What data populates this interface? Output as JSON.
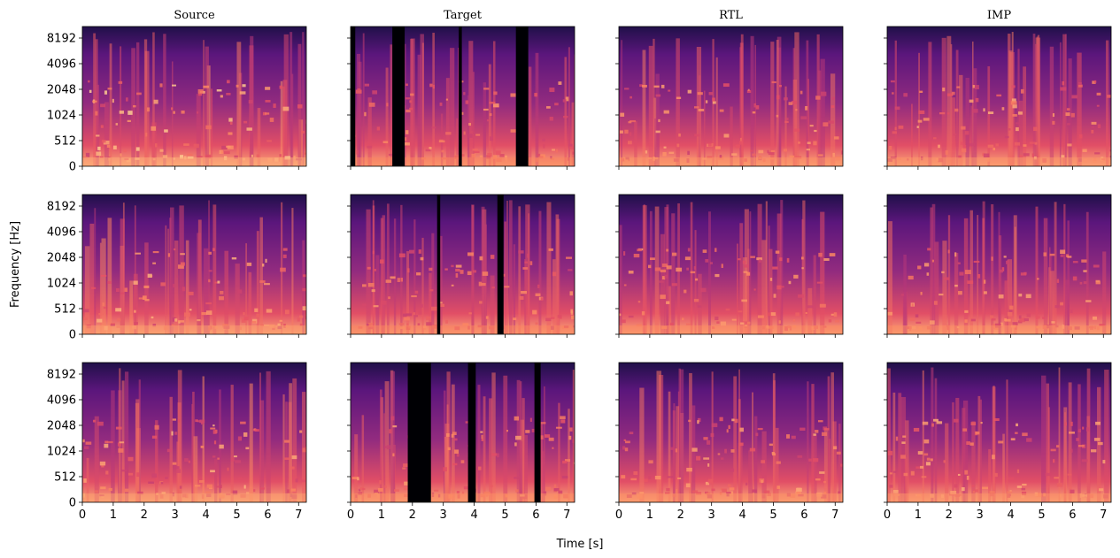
{
  "chart_data": {
    "type": "heatmap",
    "title": "",
    "colormap": "magma",
    "xlabel": "Time [s]",
    "ylabel": "Frequency [Hz]",
    "xlim": [
      0,
      7.25
    ],
    "ylim": [
      0,
      11025
    ],
    "column_titles": [
      "Source",
      "Target",
      "RTL",
      "IMP"
    ],
    "rows": 3,
    "y_ticks": [
      0,
      512,
      1024,
      2048,
      4096,
      8192
    ],
    "x_ticks": [
      0,
      1,
      2,
      3,
      4,
      5,
      6,
      7
    ],
    "sharex": true,
    "sharey": true,
    "panels": [
      {
        "row": 0,
        "col": "Source",
        "silent_intervals_s": [],
        "brightness": 0.8
      },
      {
        "row": 0,
        "col": "Target",
        "silent_intervals_s": [
          [
            0,
            0.15
          ],
          [
            1.35,
            1.75
          ],
          [
            3.5,
            3.6
          ],
          [
            5.35,
            5.75
          ]
        ],
        "brightness": 0.55
      },
      {
        "row": 0,
        "col": "RTL",
        "silent_intervals_s": [],
        "brightness": 0.62
      },
      {
        "row": 0,
        "col": "IMP",
        "silent_intervals_s": [],
        "brightness": 0.65
      },
      {
        "row": 1,
        "col": "Source",
        "silent_intervals_s": [],
        "brightness": 0.7
      },
      {
        "row": 1,
        "col": "Target",
        "silent_intervals_s": [
          [
            2.8,
            2.9
          ],
          [
            4.75,
            4.95
          ]
        ],
        "brightness": 0.55
      },
      {
        "row": 1,
        "col": "RTL",
        "silent_intervals_s": [],
        "brightness": 0.58
      },
      {
        "row": 1,
        "col": "IMP",
        "silent_intervals_s": [],
        "brightness": 0.6
      },
      {
        "row": 2,
        "col": "Source",
        "silent_intervals_s": [],
        "brightness": 0.72
      },
      {
        "row": 2,
        "col": "Target",
        "silent_intervals_s": [
          [
            1.85,
            2.6
          ],
          [
            3.8,
            4.05
          ],
          [
            5.95,
            6.15
          ]
        ],
        "brightness": 0.6
      },
      {
        "row": 2,
        "col": "RTL",
        "silent_intervals_s": [],
        "brightness": 0.62
      },
      {
        "row": 2,
        "col": "IMP",
        "silent_intervals_s": [],
        "brightness": 0.64
      }
    ]
  }
}
